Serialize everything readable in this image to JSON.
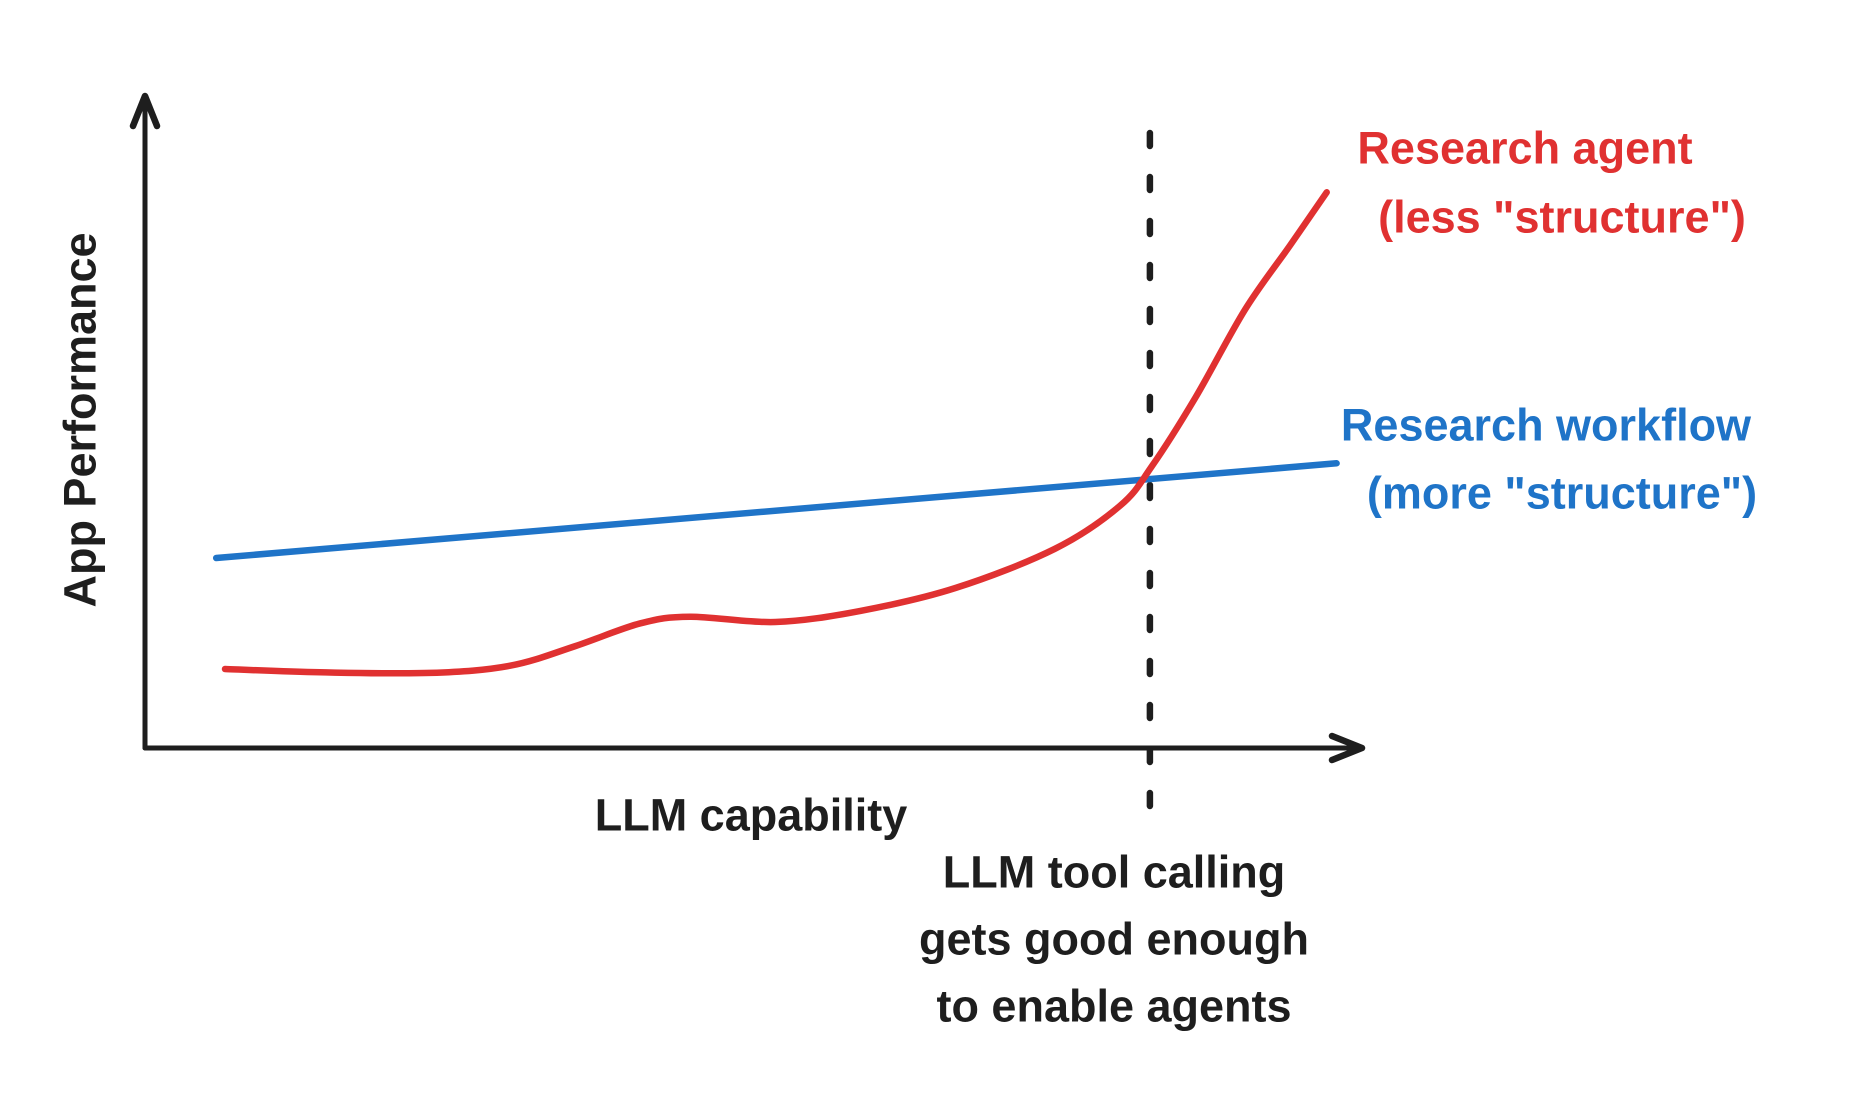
{
  "page": {
    "background_color": "#ffffff"
  },
  "figure": {
    "ink_color": "#1e1e1e",
    "agent_color": "#e03131",
    "workflow_color": "#1f74c8",
    "y_axis_label": "App Performance",
    "x_axis_label": "LLM capability",
    "agent_label_line1": "Research agent",
    "agent_label_line2": "(less \"structure\")",
    "workflow_label_line1": "Research workflow",
    "workflow_label_line2": "(more \"structure\")",
    "annotation_line1": "LLM tool calling",
    "annotation_line2": "gets good enough",
    "annotation_line3": "to enable agents"
  },
  "chart_data": {
    "type": "line",
    "title": "",
    "xlabel": "LLM capability",
    "ylabel": "App Performance",
    "xlim": [
      0,
      103
    ],
    "ylim": [
      0,
      100
    ],
    "grid": false,
    "axis_ticks": "none (conceptual sketch, unlabeled axes with arrowheads)",
    "legend": "inline colored labels at right ends of lines",
    "series": [
      {
        "name": "Research agent (less \"structure\")",
        "color": "#e03131",
        "shape": "flat low start, small bump, then steep exponential rise",
        "x": [
          0,
          8.6,
          18.6,
          25.8,
          31.7,
          37.6,
          42.1,
          49.8,
          57.5,
          66.1,
          75.1,
          81.0,
          83.9,
          87.8,
          92.3,
          96.4,
          99.7
        ],
        "y": [
          12.1,
          11.6,
          11.5,
          12.6,
          15.6,
          19.1,
          20.1,
          19.3,
          21.0,
          24.5,
          30.5,
          37.1,
          43.2,
          53.6,
          67.1,
          77.0,
          85.1
        ]
      },
      {
        "name": "Research workflow (more \"structure\")",
        "color": "#1f74c8",
        "shape": "nearly straight shallow rise",
        "x": [
          -0.8,
          100.6
        ],
        "y": [
          29.1,
          43.6
        ]
      }
    ],
    "vline": {
      "x": 83.7,
      "style": "dashed",
      "color": "#1e1e1e",
      "label": "LLM tool calling gets good enough to enable agents",
      "note": "red agent curve crosses above blue workflow line at this threshold"
    }
  }
}
